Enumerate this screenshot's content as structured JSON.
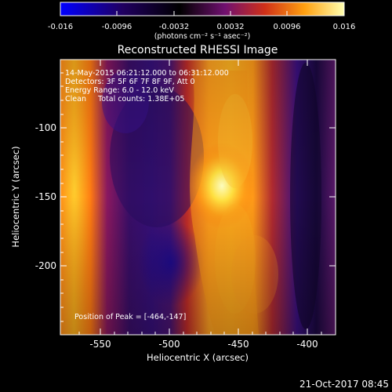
{
  "colorbar": {
    "ticks": [
      "-0.016",
      "-0.0096",
      "-0.0032",
      "0.0032",
      "0.0096",
      "0.016"
    ],
    "unit_label": "(photons cm⁻² s⁻¹ asec⁻²)"
  },
  "title": "Reconstructed RHESSI Image",
  "info": {
    "line1": "14-May-2015 06:21:12.000 to 06:31:12.000",
    "line2": "Detectors: 3F 5F 6F 7F 8F 9F, Att 0",
    "line3": "Energy Range: 6.0 - 12.0 keV",
    "line4": "Clean     Total counts: 1.38E+05"
  },
  "peak_label": "Position of Peak = [-464,-147]",
  "axes": {
    "xlabel": "Heliocentric X (arcsec)",
    "ylabel": "Heliocentric Y (arcsec)",
    "xticks": [
      "-550",
      "-500",
      "-450",
      "-400"
    ],
    "yticks": [
      "-100",
      "-150",
      "-200"
    ]
  },
  "footer_date": "21-Oct-2017 08:45"
}
